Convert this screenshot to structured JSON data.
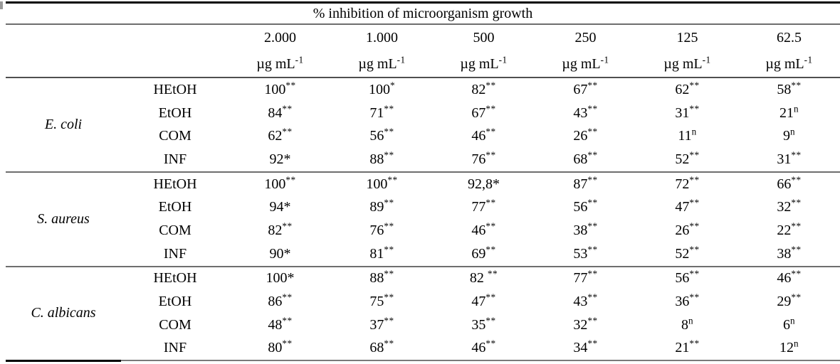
{
  "table": {
    "title": "% inhibition of microorganism growth",
    "columns": [
      {
        "conc": "2.000",
        "unit": "µg mL^-1"
      },
      {
        "conc": "1.000",
        "unit": "µg mL^-1"
      },
      {
        "conc": "500",
        "unit": "µg mL^-1"
      },
      {
        "conc": "250",
        "unit": "µg mL^-1"
      },
      {
        "conc": "125",
        "unit": "µg mL^-1"
      },
      {
        "conc": "62.5",
        "unit": "µg mL^-1"
      }
    ],
    "groups": [
      {
        "organism": "E. coli",
        "rows": [
          {
            "extract": "HEtOH",
            "cells": [
              "100^**",
              "100^*",
              "82^**",
              "67^**",
              "62^**",
              "58^**"
            ]
          },
          {
            "extract": "EtOH",
            "cells": [
              "84^**",
              "71^**",
              "67^**",
              "43^**",
              "31^**",
              "21^n"
            ]
          },
          {
            "extract": "COM",
            "cells": [
              "62^**",
              "56^**",
              "46^**",
              "26^**",
              "11^n",
              "9^n"
            ]
          },
          {
            "extract": "INF",
            "cells": [
              "92*",
              "88^**",
              "76^**",
              "68^**",
              "52^**",
              "31^**"
            ]
          }
        ]
      },
      {
        "organism": "S. aureus",
        "rows": [
          {
            "extract": "HEtOH",
            "cells": [
              "100^**",
              "100^**",
              "92,8*",
              "87^**",
              "72^**",
              "66^**"
            ]
          },
          {
            "extract": "EtOH",
            "cells": [
              "94*",
              "89^**",
              "77^**",
              "56^**",
              "47^**",
              "32^**"
            ]
          },
          {
            "extract": "COM",
            "cells": [
              "82^**",
              "76^**",
              "46^**",
              "38^**",
              "26^**",
              "22^**"
            ]
          },
          {
            "extract": "INF",
            "cells": [
              "90*",
              "81^**",
              "69^**",
              "53^**",
              "52^**",
              "38^**"
            ]
          }
        ]
      },
      {
        "organism": "C. albicans",
        "rows": [
          {
            "extract": "HEtOH",
            "cells": [
              "100*",
              "88^**",
              "82 ^**",
              "77^**",
              "56^**",
              "46^**"
            ]
          },
          {
            "extract": "EtOH",
            "cells": [
              "86^**",
              "75^**",
              "47^**",
              "43^**",
              "36^**",
              "29^**"
            ]
          },
          {
            "extract": "COM",
            "cells": [
              "48^**",
              "37^**",
              "35^**",
              "32^**",
              "8^n",
              "6^n"
            ]
          },
          {
            "extract": "INF",
            "cells": [
              "80^**",
              "68^**",
              "46^**",
              "34^**",
              "21^**",
              "12^n"
            ]
          }
        ]
      }
    ]
  }
}
